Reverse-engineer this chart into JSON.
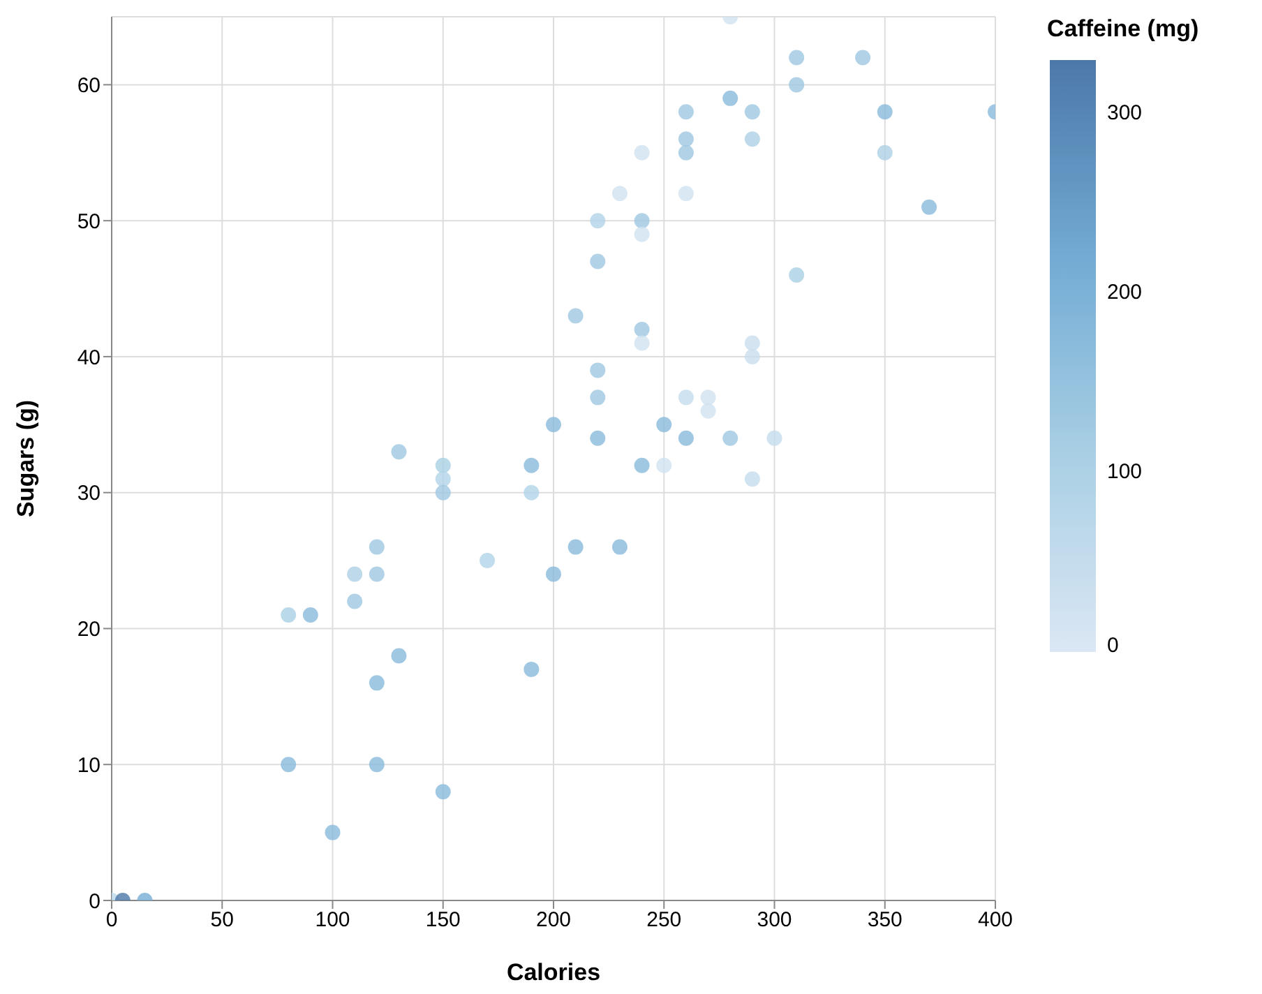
{
  "chart_data": {
    "type": "scatter",
    "xlabel": "Calories",
    "ylabel": "Sugars (g)",
    "clabel": "Caffeine (mg)",
    "xlim": [
      0,
      400
    ],
    "xticks": [
      0,
      50,
      100,
      150,
      200,
      250,
      300,
      350,
      400
    ],
    "ylim": [
      0,
      65
    ],
    "yticks": [
      0,
      10,
      20,
      30,
      40,
      50,
      60
    ],
    "clim": [
      0,
      330
    ],
    "cticks": [
      0,
      100,
      200,
      300
    ],
    "grid": true,
    "marker": "circle",
    "x": [
      280,
      310,
      340,
      310,
      280,
      260,
      290,
      350,
      400,
      260,
      290,
      260,
      350,
      240,
      230,
      260,
      370,
      220,
      240,
      240,
      220,
      310,
      210,
      240,
      240,
      290,
      290,
      220,
      220,
      260,
      270,
      270,
      200,
      250,
      220,
      260,
      280,
      300,
      130,
      150,
      190,
      240,
      250,
      150,
      290,
      150,
      190,
      120,
      170,
      110,
      120,
      200,
      210,
      230,
      110,
      80,
      90,
      130,
      120,
      190,
      80,
      120,
      150,
      100,
      0,
      5,
      15
    ],
    "values": [
      65,
      62,
      62,
      60,
      59,
      58,
      58,
      58,
      58,
      56,
      56,
      55,
      55,
      55,
      52,
      52,
      51,
      50,
      50,
      49,
      47,
      46,
      43,
      42,
      41,
      41,
      40,
      39,
      37,
      37,
      37,
      36,
      35,
      35,
      34,
      34,
      34,
      34,
      33,
      32,
      32,
      32,
      32,
      31,
      31,
      30,
      30,
      26,
      25,
      24,
      24,
      24,
      26,
      26,
      22,
      21,
      21,
      18,
      16,
      17,
      10,
      10,
      8,
      5,
      0,
      0,
      0
    ],
    "cvalues": [
      25,
      130,
      130,
      130,
      175,
      130,
      130,
      175,
      175,
      130,
      100,
      130,
      100,
      25,
      25,
      25,
      175,
      90,
      130,
      25,
      130,
      110,
      130,
      130,
      25,
      40,
      40,
      130,
      130,
      50,
      25,
      25,
      175,
      175,
      175,
      175,
      130,
      50,
      130,
      110,
      175,
      175,
      25,
      90,
      50,
      130,
      90,
      130,
      90,
      100,
      130,
      175,
      175,
      175,
      130,
      110,
      175,
      175,
      175,
      175,
      175,
      175,
      175,
      175,
      70,
      330,
      210
    ]
  }
}
